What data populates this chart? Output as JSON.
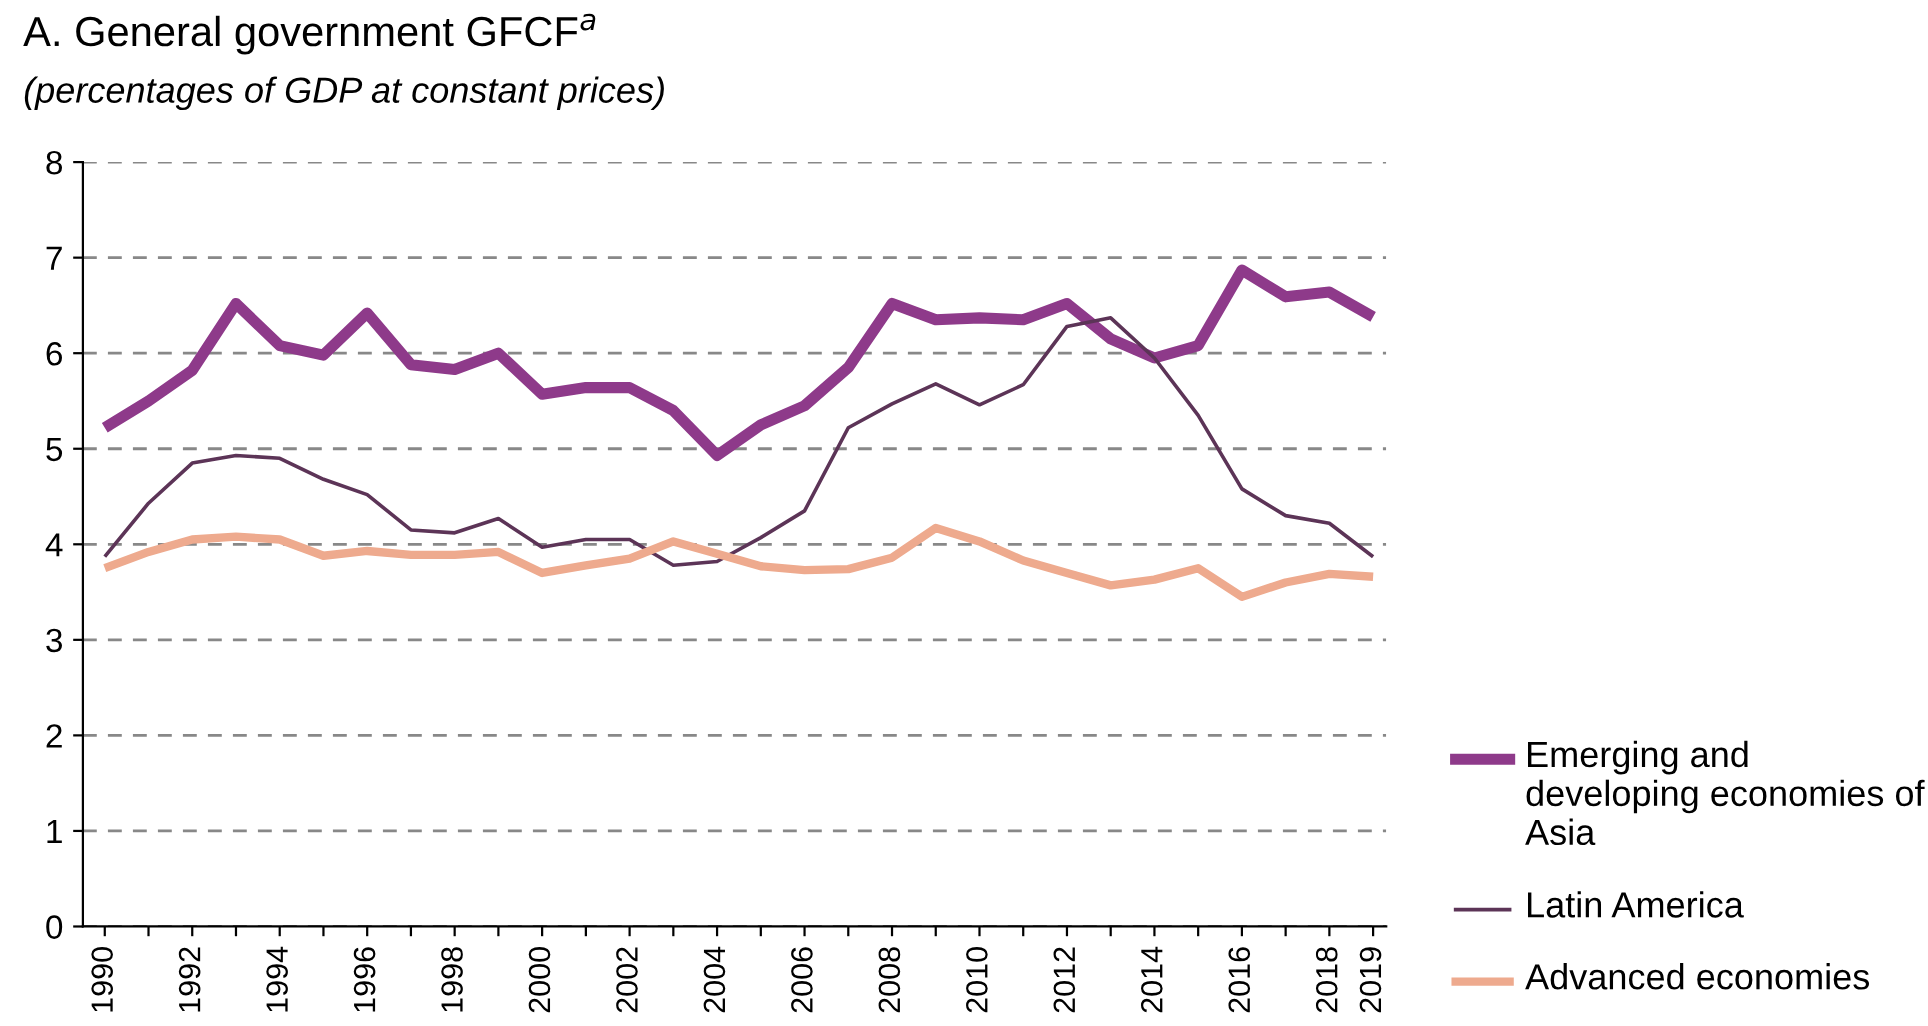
{
  "chart_data": {
    "type": "line",
    "title": "A. General government GFCF$^{a}$",
    "subtitle": "(percentages of GDP at constant prices)",
    "x": [
      1990,
      1991,
      1992,
      1993,
      1994,
      1995,
      1996,
      1997,
      1998,
      1999,
      2000,
      2001,
      2002,
      2003,
      2004,
      2005,
      2006,
      2007,
      2008,
      2009,
      2010,
      2011,
      2012,
      2013,
      2014,
      2015,
      2016,
      2017,
      2018,
      2019
    ],
    "series": [
      {
        "name": "Emerging and developing economies of Asia",
        "color": "#8e3a8a",
        "values": [
          5.22,
          5.5,
          5.82,
          6.52,
          6.08,
          5.98,
          6.42,
          5.88,
          5.83,
          6.0,
          5.57,
          5.64,
          5.64,
          5.4,
          4.93,
          5.25,
          5.45,
          5.85,
          6.52,
          6.35,
          6.37,
          6.35,
          6.52,
          6.15,
          5.95,
          6.08,
          6.87,
          6.59,
          6.64,
          6.38
        ]
      },
      {
        "name": "Latin America",
        "color": "#5c3457",
        "values": [
          3.87,
          4.43,
          4.85,
          4.93,
          4.9,
          4.68,
          4.52,
          4.15,
          4.12,
          4.27,
          3.97,
          4.05,
          4.05,
          3.78,
          3.82,
          4.07,
          4.35,
          5.22,
          5.47,
          5.68,
          5.46,
          5.67,
          6.28,
          6.37,
          5.95,
          5.35,
          4.58,
          4.3,
          4.22,
          3.87
        ]
      },
      {
        "name": "Advanced economies",
        "color": "#eeaa8e",
        "values": [
          3.75,
          3.92,
          4.05,
          4.08,
          4.05,
          3.88,
          3.93,
          3.89,
          3.89,
          3.92,
          3.7,
          3.78,
          3.85,
          4.03,
          3.9,
          3.77,
          3.73,
          3.74,
          3.86,
          4.17,
          4.03,
          3.83,
          3.7,
          3.57,
          3.63,
          3.75,
          3.45,
          3.6,
          3.69,
          3.66
        ]
      }
    ],
    "xlim": [
      1989.5,
      2019.3
    ],
    "xticks": [
      1990,
      {
        "value": 1991,
        "label": null
      },
      1992,
      {
        "value": 1993,
        "label": null
      },
      1994,
      {
        "value": 1995,
        "label": null
      },
      1996,
      {
        "value": 1997,
        "label": null
      },
      1998,
      {
        "value": 1999,
        "label": null
      },
      2000,
      {
        "value": 2001,
        "label": null
      },
      2002,
      {
        "value": 2003,
        "label": null
      },
      2004,
      {
        "value": 2005,
        "label": null
      },
      2006,
      {
        "value": 2007,
        "label": null
      },
      2008,
      {
        "value": 2009,
        "label": null
      },
      2010,
      {
        "value": 2011,
        "label": null
      },
      2012,
      {
        "value": 2013,
        "label": null
      },
      2014,
      {
        "value": 2015,
        "label": null
      },
      2016,
      {
        "value": 2017,
        "label": null
      },
      2018,
      2019
    ],
    "ylim": [
      0,
      8
    ],
    "yticks": [
      0,
      1,
      2,
      3,
      4,
      5,
      6,
      7,
      8
    ],
    "grid": "y",
    "line_style": "solid",
    "legend": "right"
  }
}
